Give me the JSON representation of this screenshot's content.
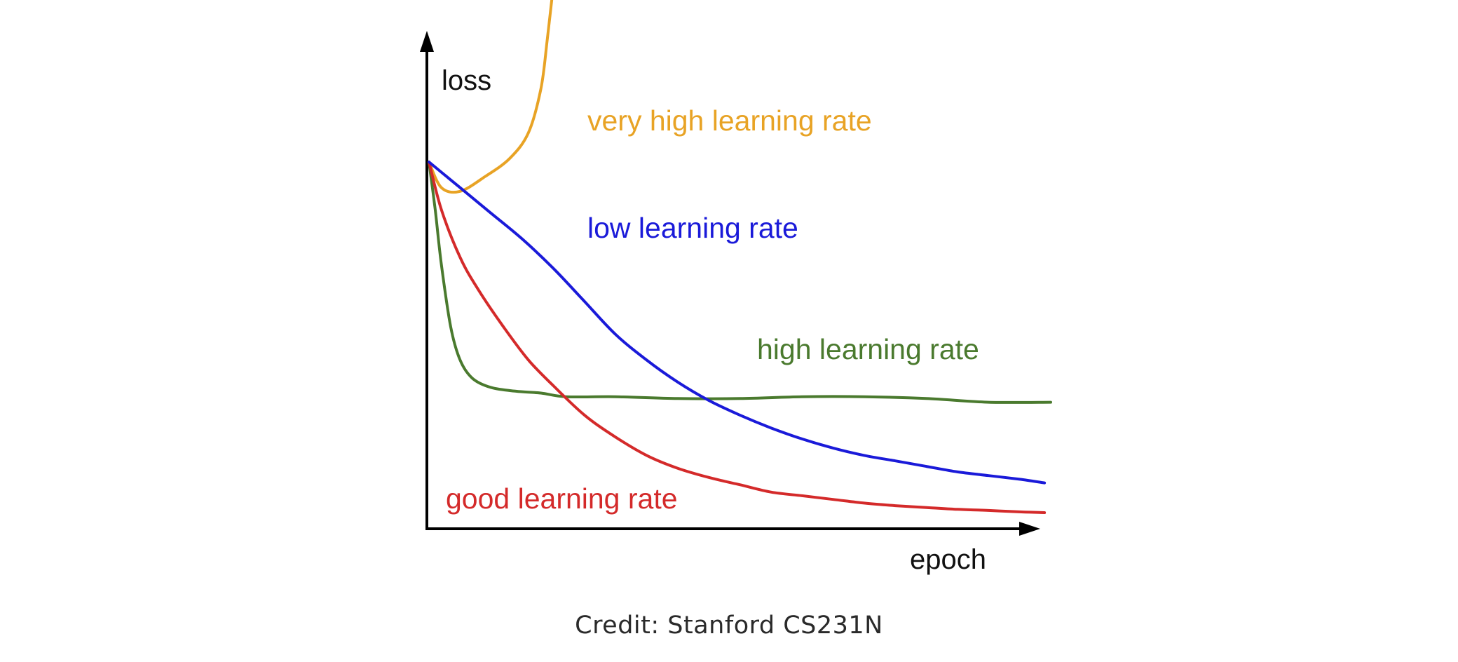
{
  "caption": "Credit: Stanford CS231N",
  "chart_data": {
    "type": "line",
    "xlabel": "epoch",
    "ylabel": "loss",
    "grid": false,
    "legend": "inline labels",
    "series": [
      {
        "name": "very high learning rate",
        "color": "#E8A325",
        "points": [
          [
            0.0,
            1.0
          ],
          [
            0.02,
            0.93
          ],
          [
            0.05,
            0.92
          ],
          [
            0.09,
            0.96
          ],
          [
            0.13,
            1.01
          ],
          [
            0.16,
            1.08
          ],
          [
            0.18,
            1.2
          ],
          [
            0.19,
            1.33
          ],
          [
            0.2,
            1.48
          ],
          [
            0.205,
            1.53
          ]
        ]
      },
      {
        "name": "low learning rate",
        "color": "#1A1AD9",
        "points": [
          [
            0.0,
            1.0
          ],
          [
            0.05,
            0.93
          ],
          [
            0.1,
            0.86
          ],
          [
            0.15,
            0.79
          ],
          [
            0.2,
            0.71
          ],
          [
            0.25,
            0.62
          ],
          [
            0.3,
            0.53
          ],
          [
            0.35,
            0.46
          ],
          [
            0.4,
            0.4
          ],
          [
            0.45,
            0.35
          ],
          [
            0.5,
            0.31
          ],
          [
            0.55,
            0.275
          ],
          [
            0.6,
            0.245
          ],
          [
            0.65,
            0.22
          ],
          [
            0.7,
            0.2
          ],
          [
            0.75,
            0.185
          ],
          [
            0.8,
            0.17
          ],
          [
            0.85,
            0.155
          ],
          [
            0.9,
            0.145
          ],
          [
            0.95,
            0.135
          ],
          [
            0.99,
            0.125
          ]
        ]
      },
      {
        "name": "high learning rate",
        "color": "#4A7A2E",
        "points": [
          [
            0.0,
            1.0
          ],
          [
            0.01,
            0.87
          ],
          [
            0.02,
            0.72
          ],
          [
            0.035,
            0.55
          ],
          [
            0.05,
            0.46
          ],
          [
            0.07,
            0.41
          ],
          [
            0.1,
            0.385
          ],
          [
            0.14,
            0.375
          ],
          [
            0.18,
            0.37
          ],
          [
            0.22,
            0.36
          ],
          [
            0.3,
            0.36
          ],
          [
            0.4,
            0.355
          ],
          [
            0.5,
            0.355
          ],
          [
            0.6,
            0.36
          ],
          [
            0.7,
            0.36
          ],
          [
            0.8,
            0.355
          ],
          [
            0.9,
            0.345
          ],
          [
            1.0,
            0.345
          ]
        ]
      },
      {
        "name": "good learning rate",
        "color": "#D42A2A",
        "points": [
          [
            0.0,
            1.0
          ],
          [
            0.02,
            0.87
          ],
          [
            0.05,
            0.74
          ],
          [
            0.08,
            0.65
          ],
          [
            0.12,
            0.55
          ],
          [
            0.16,
            0.46
          ],
          [
            0.2,
            0.39
          ],
          [
            0.25,
            0.31
          ],
          [
            0.3,
            0.25
          ],
          [
            0.35,
            0.2
          ],
          [
            0.4,
            0.165
          ],
          [
            0.45,
            0.14
          ],
          [
            0.5,
            0.12
          ],
          [
            0.55,
            0.1
          ],
          [
            0.6,
            0.09
          ],
          [
            0.65,
            0.08
          ],
          [
            0.7,
            0.07
          ],
          [
            0.75,
            0.063
          ],
          [
            0.8,
            0.058
          ],
          [
            0.85,
            0.053
          ],
          [
            0.9,
            0.05
          ],
          [
            0.95,
            0.046
          ],
          [
            0.99,
            0.044
          ]
        ]
      }
    ]
  }
}
